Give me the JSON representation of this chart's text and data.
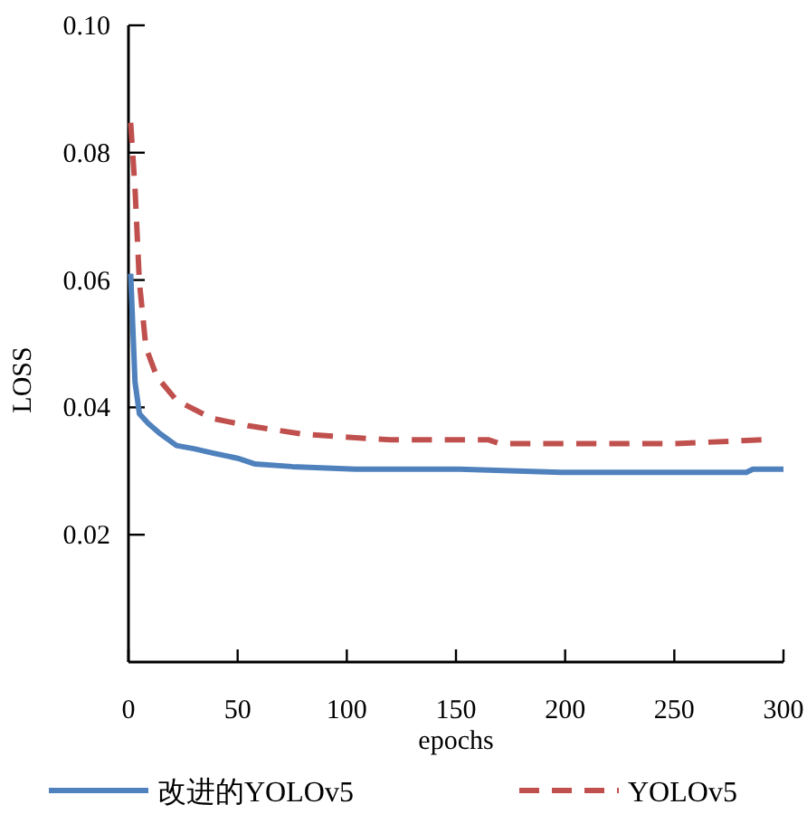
{
  "chart_data": {
    "type": "line",
    "xlabel": "epochs",
    "ylabel": "LOSS",
    "xlim": [
      0,
      300
    ],
    "ylim": [
      0,
      0.1
    ],
    "xticks": [
      0,
      50,
      100,
      150,
      200,
      250,
      300
    ],
    "yticks": [
      0.02,
      0.04,
      0.06,
      0.08,
      {
        "value": 0.1,
        "label": "0.10"
      }
    ],
    "grid": false,
    "legend": "bottom",
    "marker": "none",
    "series": [
      {
        "name": "改进的YOLOv5",
        "color": "#4f81bd",
        "line_style": "solid",
        "x": [
          1,
          3,
          5,
          9,
          14,
          22,
          30,
          39,
          50,
          58,
          75,
          104,
          150,
          198,
          283,
          286,
          300
        ],
        "values": [
          0.061,
          0.044,
          0.039,
          0.0375,
          0.036,
          0.034,
          0.0335,
          0.0328,
          0.032,
          0.0311,
          0.0307,
          0.0303,
          0.0303,
          0.0298,
          0.0298,
          0.0303,
          0.0303
        ]
      },
      {
        "name": "YOLOv5",
        "color": "#c0504d",
        "line_style": "dashed",
        "x": [
          1,
          3,
          5,
          8,
          13,
          22,
          38,
          55,
          80,
          110,
          120,
          165,
          170,
          250,
          290
        ],
        "values": [
          0.0847,
          0.0744,
          0.0597,
          0.0494,
          0.0448,
          0.0411,
          0.0383,
          0.0371,
          0.0358,
          0.0351,
          0.0349,
          0.0349,
          0.0343,
          0.0343,
          0.0349
        ]
      }
    ]
  }
}
